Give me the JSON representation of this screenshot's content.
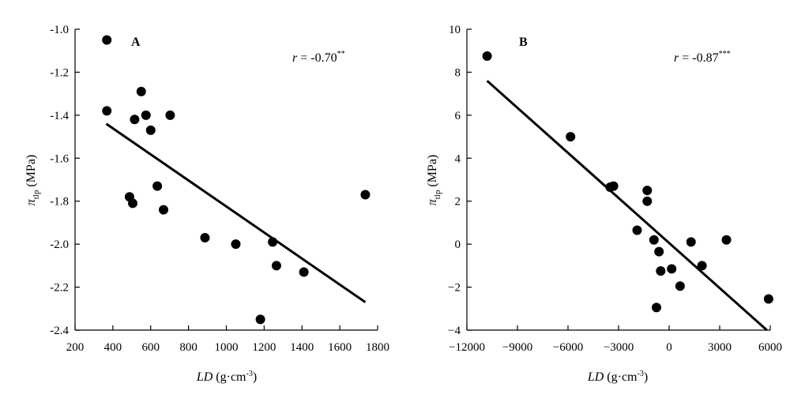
{
  "chart_data": [
    {
      "type": "scatter",
      "panel_label": "A",
      "annotation": {
        "prefix": "r",
        "value": " = -0.70",
        "stars": "**"
      },
      "xlabel": {
        "italic": "LD",
        "unit": " (g·cm",
        "exp": "-3",
        "close": ")"
      },
      "ylabel": {
        "symbol": "π",
        "sub": "tlp",
        "unit": " (MPa)"
      },
      "xlim": [
        200,
        1800
      ],
      "ylim": [
        -2.4,
        -1.0
      ],
      "xticks": [
        200,
        400,
        600,
        800,
        1000,
        1200,
        1400,
        1600,
        1800
      ],
      "yticks": [
        -2.4,
        -2.2,
        -2.0,
        -1.8,
        -1.6,
        -1.4,
        -1.2,
        -1.0
      ],
      "xtick_labels": [
        "200",
        "400",
        "600",
        "800",
        "1000",
        "1200",
        "1400",
        "1600",
        "1800"
      ],
      "ytick_labels": [
        "-2.4",
        "-2.2",
        "-2.0",
        "-1.8",
        "-1.6",
        "-1.4",
        "-1.2",
        "-1.0"
      ],
      "grid": false,
      "points": [
        {
          "x": 368,
          "y": -1.05
        },
        {
          "x": 368,
          "y": -1.38
        },
        {
          "x": 515,
          "y": -1.42
        },
        {
          "x": 550,
          "y": -1.29
        },
        {
          "x": 575,
          "y": -1.4
        },
        {
          "x": 600,
          "y": -1.47
        },
        {
          "x": 703,
          "y": -1.4
        },
        {
          "x": 488,
          "y": -1.78
        },
        {
          "x": 505,
          "y": -1.81
        },
        {
          "x": 635,
          "y": -1.73
        },
        {
          "x": 668,
          "y": -1.84
        },
        {
          "x": 887,
          "y": -1.97
        },
        {
          "x": 1050,
          "y": -2.0
        },
        {
          "x": 1245,
          "y": -1.99
        },
        {
          "x": 1265,
          "y": -2.1
        },
        {
          "x": 1410,
          "y": -2.13
        },
        {
          "x": 1735,
          "y": -1.77
        },
        {
          "x": 1180,
          "y": -2.35
        }
      ],
      "fit_line": [
        {
          "x": 365,
          "y": -1.44
        },
        {
          "x": 1735,
          "y": -2.27
        }
      ]
    },
    {
      "type": "scatter",
      "panel_label": "B",
      "annotation": {
        "prefix": "r",
        "value": " = -0.87",
        "stars": "***"
      },
      "xlabel": {
        "italic": "LD",
        "unit": " (g·cm",
        "exp": "-3",
        "close": ")"
      },
      "ylabel": {
        "symbol": "π",
        "sub": "tlp",
        "unit": " (MPa)"
      },
      "xlim": [
        -12000,
        6000
      ],
      "ylim": [
        -4,
        10
      ],
      "xticks": [
        -12000,
        -9000,
        -6000,
        -3000,
        0,
        3000,
        6000
      ],
      "yticks": [
        -4,
        -2,
        0,
        2,
        4,
        6,
        8,
        10
      ],
      "xtick_labels": [
        "−12000",
        "−9000",
        "−6000",
        "−3000",
        "0",
        "3000",
        "6000"
      ],
      "ytick_labels": [
        "−4",
        "−2",
        "0",
        "2",
        "4",
        "6",
        "8",
        "10"
      ],
      "grid": false,
      "points": [
        {
          "x": -10800,
          "y": 8.75
        },
        {
          "x": -5850,
          "y": 5.0
        },
        {
          "x": -3500,
          "y": 2.65
        },
        {
          "x": -3300,
          "y": 2.7
        },
        {
          "x": -1300,
          "y": 2.5
        },
        {
          "x": -1300,
          "y": 2.0
        },
        {
          "x": -1900,
          "y": 0.65
        },
        {
          "x": -900,
          "y": 0.2
        },
        {
          "x": -600,
          "y": -0.35
        },
        {
          "x": -500,
          "y": -1.25
        },
        {
          "x": 150,
          "y": -1.15
        },
        {
          "x": -750,
          "y": -2.95
        },
        {
          "x": 650,
          "y": -1.95
        },
        {
          "x": 1300,
          "y": 0.1
        },
        {
          "x": 1950,
          "y": -1.0
        },
        {
          "x": 3400,
          "y": 0.2
        },
        {
          "x": 5900,
          "y": -2.55
        }
      ],
      "fit_line": [
        {
          "x": -10800,
          "y": 7.6
        },
        {
          "x": 5800,
          "y": -4.0
        }
      ]
    }
  ]
}
